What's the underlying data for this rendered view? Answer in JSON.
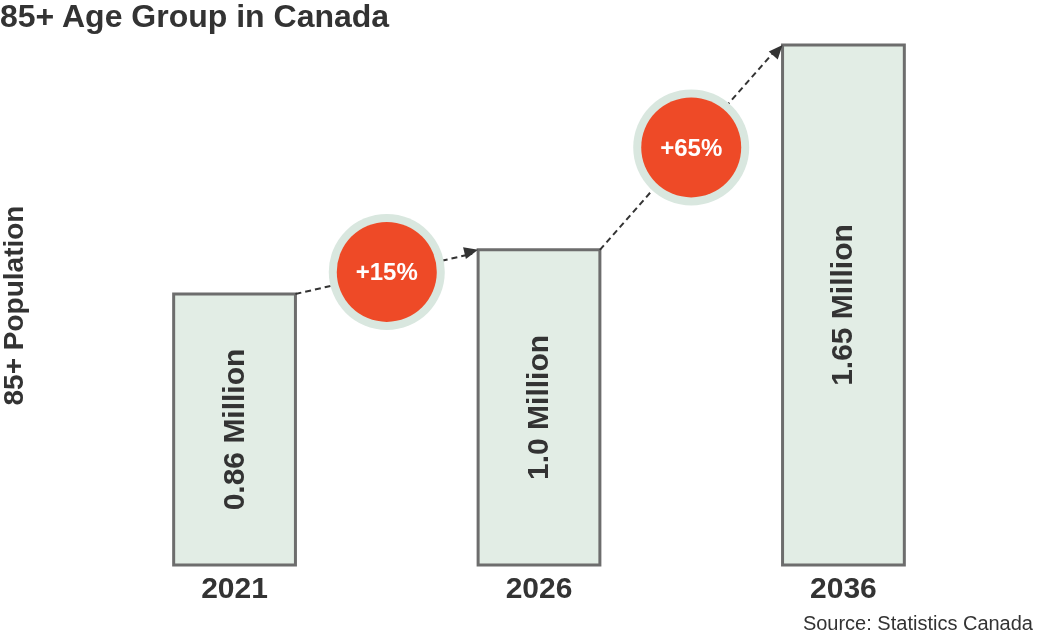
{
  "chart_data": {
    "type": "bar",
    "title": "85+ Age Group in Canada",
    "ylabel": "85+ Population",
    "categories": [
      "2021",
      "2026",
      "2036"
    ],
    "values": [
      0.86,
      1.0,
      1.65
    ],
    "value_labels": [
      "0.86 Million",
      "1.0 Million",
      "1.65 Million"
    ],
    "color": "#e2ede5",
    "ylim": [
      0,
      1.65
    ],
    "annotations": [
      "+15%",
      "+65%",
      "Source: Statistics Canada"
    ]
  }
}
